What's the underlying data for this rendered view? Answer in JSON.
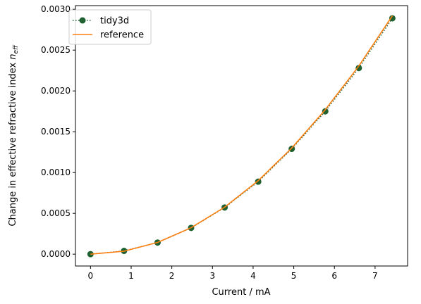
{
  "chart_data": {
    "type": "line",
    "xlabel": "Current / mA",
    "ylabel": "Change in effective refractive index n_eff",
    "ylabel_main": "Change in effective refractive index ",
    "ylabel_symbol": "n",
    "ylabel_subscript": "eff",
    "xlim": [
      -0.37,
      7.8
    ],
    "ylim": [
      -0.000145,
      0.003045
    ],
    "xticks": [
      0,
      1,
      2,
      3,
      4,
      5,
      6,
      7
    ],
    "xtick_labels": [
      "0",
      "1",
      "2",
      "3",
      "4",
      "5",
      "6",
      "7"
    ],
    "yticks": [
      0,
      0.0005,
      0.001,
      0.0015,
      0.002,
      0.0025,
      0.003
    ],
    "ytick_labels": [
      "0.0000",
      "0.0005",
      "0.0010",
      "0.0015",
      "0.0020",
      "0.0025",
      "0.0030"
    ],
    "grid": false,
    "legend_position": "top-left",
    "series": [
      {
        "name": "tidy3d",
        "color": "#1f6130",
        "style": "dotted-with-markers",
        "x": [
          0,
          0.825,
          1.65,
          2.475,
          3.3,
          4.125,
          4.95,
          5.775,
          6.6,
          7.425
        ],
        "y": [
          0,
          4e-05,
          0.000142,
          0.000322,
          0.000572,
          0.000888,
          0.00129,
          0.00175,
          0.00228,
          0.00289
        ]
      },
      {
        "name": "reference",
        "color": "#ff7f0e",
        "style": "solid",
        "x": [
          0,
          0.825,
          1.65,
          2.475,
          3.3,
          4.125,
          4.95,
          5.775,
          6.6,
          7.425
        ],
        "y": [
          0,
          3.6e-05,
          0.000144,
          0.000324,
          0.000576,
          0.0009,
          0.0013,
          0.00177,
          0.002305,
          0.00292
        ]
      }
    ]
  }
}
